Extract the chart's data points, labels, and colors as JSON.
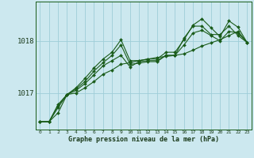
{
  "title": "Graphe pression niveau de la mer (hPa)",
  "background_color": "#cce8ef",
  "plot_bg_color": "#cce8ef",
  "line_color": "#1a5c1a",
  "grid_color": "#9ecdd8",
  "xlim": [
    -0.5,
    23.5
  ],
  "ylim": [
    1016.3,
    1018.75
  ],
  "yticks": [
    1017,
    1018
  ],
  "xticks": [
    0,
    1,
    2,
    3,
    4,
    5,
    6,
    7,
    8,
    9,
    10,
    11,
    12,
    13,
    14,
    15,
    16,
    17,
    18,
    19,
    20,
    21,
    22,
    23
  ],
  "series": [
    [
      1016.45,
      1016.45,
      1016.62,
      1016.97,
      1017.0,
      1017.1,
      1017.22,
      1017.36,
      1017.44,
      1017.55,
      1017.58,
      1017.62,
      1017.65,
      1017.68,
      1017.7,
      1017.72,
      1017.75,
      1017.82,
      1017.9,
      1017.96,
      1018.02,
      1018.1,
      1018.18,
      1017.97
    ],
    [
      1016.45,
      1016.45,
      1016.72,
      1016.97,
      1017.05,
      1017.18,
      1017.35,
      1017.52,
      1017.62,
      1017.72,
      1017.5,
      1017.6,
      1017.62,
      1017.62,
      1017.72,
      1017.72,
      1018.05,
      1018.28,
      1018.28,
      1018.12,
      1018.12,
      1018.28,
      1018.1,
      1017.97
    ],
    [
      1016.45,
      1016.45,
      1016.78,
      1016.97,
      1017.1,
      1017.28,
      1017.48,
      1017.65,
      1017.78,
      1018.02,
      1017.62,
      1017.62,
      1017.65,
      1017.65,
      1017.78,
      1017.78,
      1018.02,
      1018.3,
      1018.42,
      1018.25,
      1018.08,
      1018.38,
      1018.26,
      1017.97
    ],
    [
      1016.45,
      1016.45,
      1016.76,
      1016.97,
      1017.08,
      1017.22,
      1017.42,
      1017.58,
      1017.72,
      1017.92,
      1017.55,
      1017.57,
      1017.6,
      1017.6,
      1017.72,
      1017.72,
      1017.92,
      1018.15,
      1018.2,
      1018.1,
      1018.0,
      1018.18,
      1018.15,
      1017.97
    ]
  ]
}
